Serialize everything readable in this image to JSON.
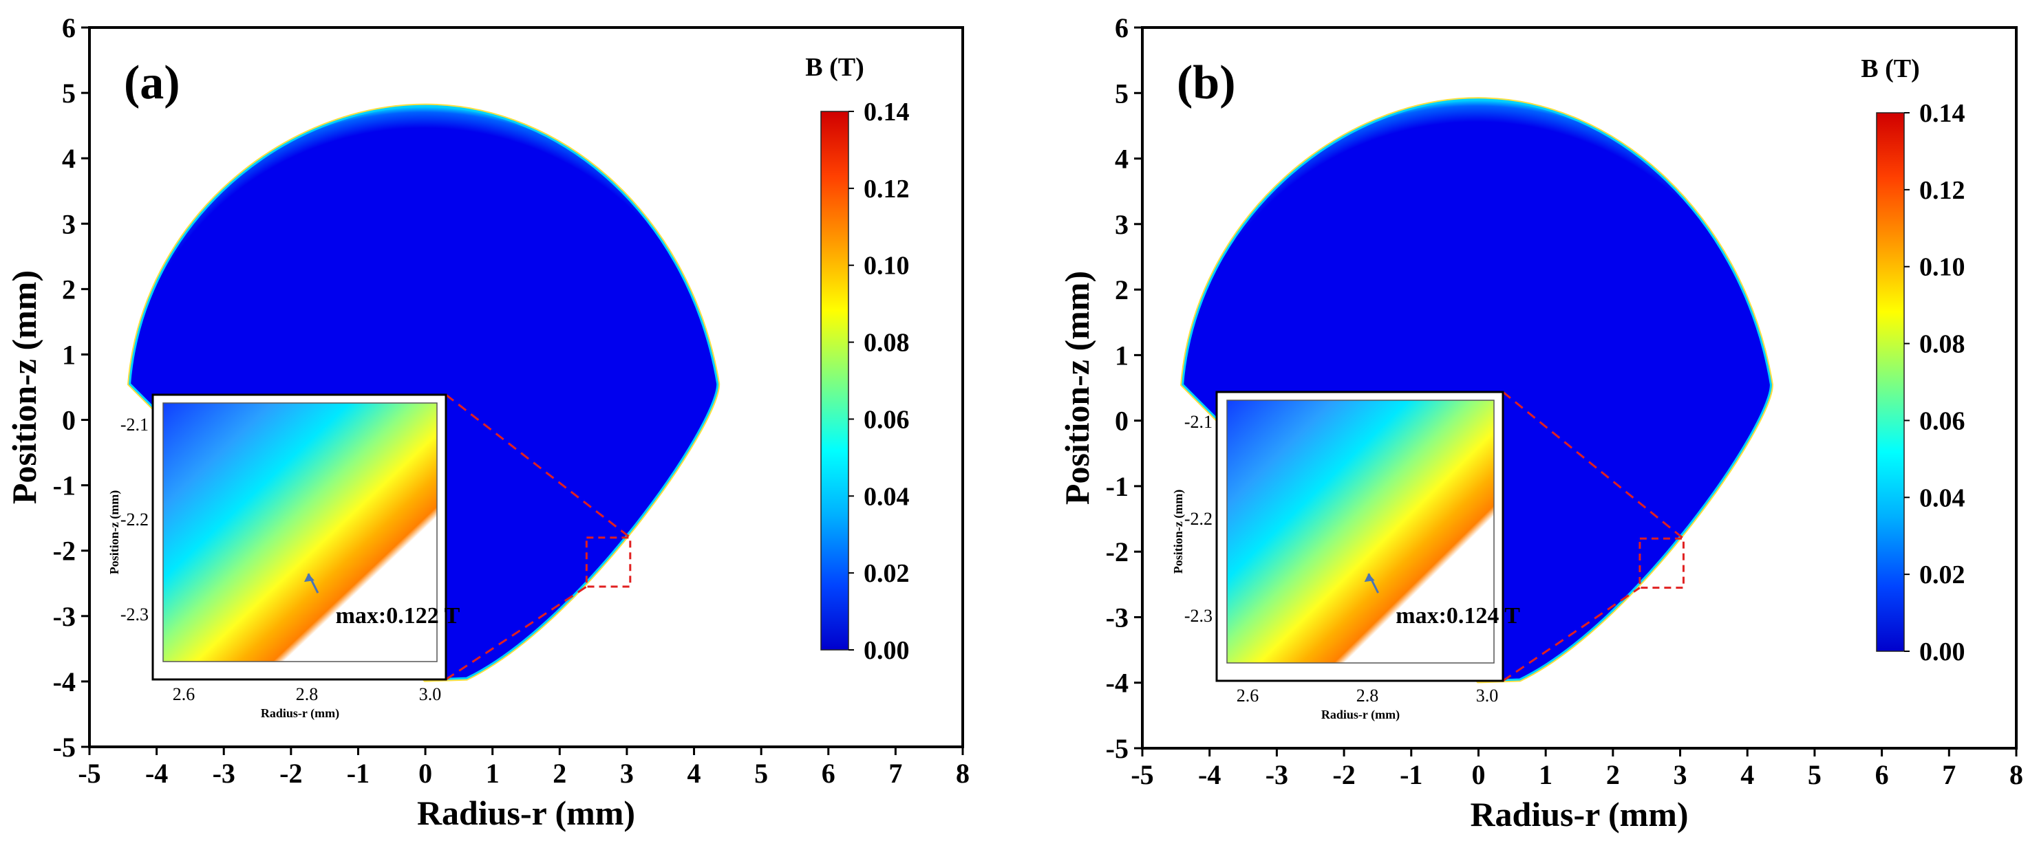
{
  "chart_data": [
    {
      "type": "heatmap",
      "panel_label": "(a)",
      "xlabel": "Radius-r (mm)",
      "ylabel": "Position-z (mm)",
      "xlim": [
        -5,
        8
      ],
      "ylim": [
        -5,
        6
      ],
      "xticks": [
        "-5",
        "-4",
        "-3",
        "-2",
        "-1",
        "0",
        "1",
        "2",
        "3",
        "4",
        "5",
        "6",
        "7",
        "8"
      ],
      "yticks": [
        "-5",
        "-4",
        "-3",
        "-2",
        "-1",
        "0",
        "1",
        "2",
        "3",
        "4",
        "5",
        "6"
      ],
      "droplet": {
        "top_z": 4.8,
        "bottom_z": -3.95,
        "left_r": -4.4,
        "right_r": 4.35,
        "widest_z": 0.55
      },
      "colorbar": {
        "title": "B (T)",
        "ticks": [
          "0.14",
          "0.12",
          "0.10",
          "0.08",
          "0.06",
          "0.04",
          "0.02",
          "0.00"
        ],
        "min": 0.0,
        "max": 0.14
      },
      "zoom_box": {
        "r": [
          2.4,
          3.05
        ],
        "z": [
          -2.55,
          -1.8
        ]
      },
      "inset": {
        "xticks": [
          "2.6",
          "2.8",
          "3.0"
        ],
        "yticks": [
          "-2.1",
          "-2.2",
          "-2.3"
        ],
        "xlabel": "Radius-r (mm)",
        "ylabel": "Position-z (mm)",
        "annotation": "max:0.122 T"
      }
    },
    {
      "type": "heatmap",
      "panel_label": "(b)",
      "xlabel": "Radius-r (mm)",
      "ylabel": "Position-z (mm)",
      "xlim": [
        -5,
        8
      ],
      "ylim": [
        -5,
        6
      ],
      "xticks": [
        "-5",
        "-4",
        "-3",
        "-2",
        "-1",
        "0",
        "1",
        "2",
        "3",
        "4",
        "5",
        "6",
        "7",
        "8"
      ],
      "yticks": [
        "-5",
        "-4",
        "-3",
        "-2",
        "-1",
        "0",
        "1",
        "2",
        "3",
        "4",
        "5",
        "6"
      ],
      "droplet": {
        "top_z": 4.9,
        "bottom_z": -3.95,
        "left_r": -4.4,
        "right_r": 4.35,
        "widest_z": 0.55
      },
      "colorbar": {
        "title": "B (T)",
        "ticks": [
          "0.14",
          "0.12",
          "0.10",
          "0.08",
          "0.06",
          "0.04",
          "0.02",
          "0.00"
        ],
        "min": 0.0,
        "max": 0.14
      },
      "zoom_box": {
        "r": [
          2.4,
          3.05
        ],
        "z": [
          -2.55,
          -1.8
        ]
      },
      "inset": {
        "xticks": [
          "2.6",
          "2.8",
          "3.0"
        ],
        "yticks": [
          "-2.1",
          "-2.2",
          "-2.3"
        ],
        "xlabel": "Radius-r (mm)",
        "ylabel": "Position-z (mm)",
        "annotation": "max:0.124 T"
      }
    }
  ],
  "colors": {
    "field_low": "#0000ee",
    "colormap": [
      "#0000cc",
      "#0044ff",
      "#00b0ff",
      "#00ffff",
      "#7fff7f",
      "#ffff00",
      "#ffa000",
      "#ff4000",
      "#d00000"
    ],
    "zoom_line": "#e02020",
    "arrow": "#4a74b4"
  }
}
